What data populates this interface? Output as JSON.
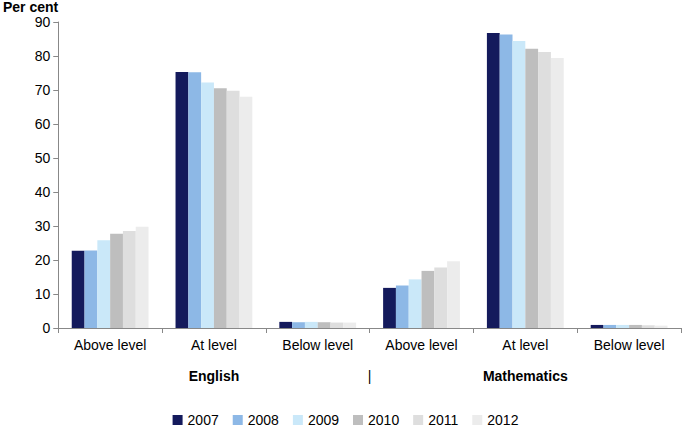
{
  "chart_data": {
    "type": "bar",
    "y_label": "Per cent",
    "categories": [
      "Above level",
      "At level",
      "Below level",
      "Above level",
      "At level",
      "Below level"
    ],
    "groups": [
      "English",
      "Mathematics"
    ],
    "group_separator": "|",
    "series": [
      {
        "name": "2007",
        "color": "#141a5c",
        "values": [
          22.7,
          75.3,
          1.8,
          11.8,
          86.8,
          0.9
        ]
      },
      {
        "name": "2008",
        "color": "#8db8e6",
        "values": [
          22.8,
          75.2,
          1.7,
          12.5,
          86.3,
          0.9
        ]
      },
      {
        "name": "2009",
        "color": "#cae8f9",
        "values": [
          25.8,
          72.2,
          1.8,
          14.3,
          84.4,
          0.9
        ]
      },
      {
        "name": "2010",
        "color": "#bebebe",
        "values": [
          27.7,
          70.5,
          1.7,
          16.8,
          82.1,
          0.9
        ]
      },
      {
        "name": "2011",
        "color": "#dedede",
        "values": [
          28.5,
          69.8,
          1.6,
          17.8,
          81.2,
          0.8
        ]
      },
      {
        "name": "2012",
        "color": "#ececec",
        "values": [
          29.8,
          68.0,
          1.6,
          19.6,
          79.4,
          0.7
        ]
      }
    ],
    "ylim": [
      0,
      90
    ],
    "yticks": [
      0,
      10,
      20,
      30,
      40,
      50,
      60,
      70,
      80,
      90
    ],
    "grid": false,
    "legend": "bottom"
  }
}
